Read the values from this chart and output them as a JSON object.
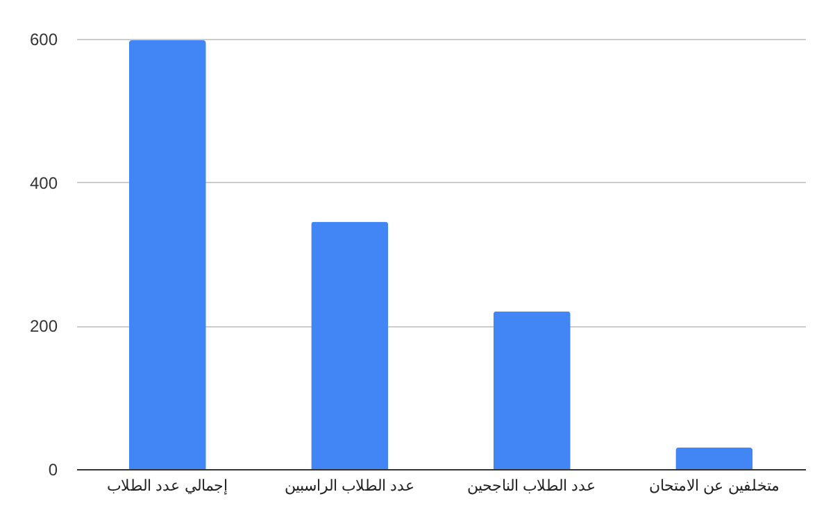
{
  "chart_data": {
    "type": "bar",
    "categories": [
      "إجمالي عدد الطلاب",
      "عدد الطلاب الراسبين",
      "عدد الطلاب الناجحين",
      "متخلفين عن الامتحان"
    ],
    "values": [
      598,
      345,
      220,
      30
    ],
    "color": "#4285f4",
    "ylim": [
      0,
      600
    ],
    "yticks": [
      0,
      200,
      400,
      600
    ],
    "grid": "y"
  }
}
